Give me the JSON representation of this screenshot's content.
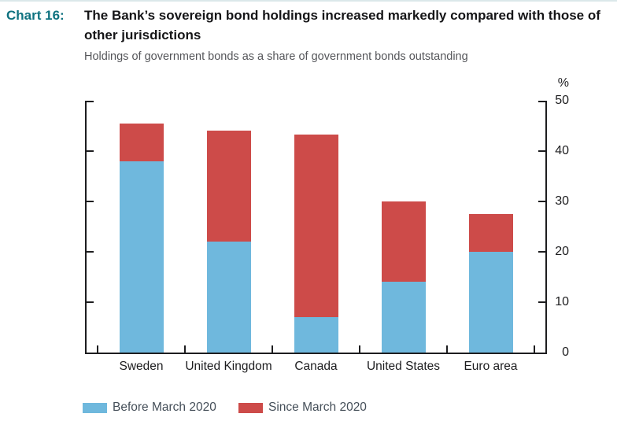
{
  "header": {
    "label": "Chart 16:",
    "title": "The Bank’s sovereign bond holdings increased markedly compared with those of other jurisdictions",
    "subtitle": "Holdings of government bonds as a share of government bonds outstanding"
  },
  "chart_data": {
    "type": "bar",
    "stacked": true,
    "title": "The Bank’s sovereign bond holdings increased markedly compared with those of other jurisdictions",
    "subtitle": "Holdings of government bonds as a share of government bonds outstanding",
    "unit_label": "%",
    "categories": [
      "Sweden",
      "United Kingdom",
      "Canada",
      "United States",
      "Euro area"
    ],
    "series": [
      {
        "name": "Before March 2020",
        "color": "#6fb8dd",
        "values": [
          38,
          22,
          7,
          14,
          20
        ]
      },
      {
        "name": "Since March 2020",
        "color": "#cd4b49",
        "values": [
          7.5,
          22,
          36.3,
          16,
          7.5
        ]
      }
    ],
    "stacked_totals": [
      45.5,
      44,
      43.3,
      30,
      27.5
    ],
    "ylim": [
      0,
      50
    ],
    "yticks": [
      0,
      10,
      20,
      30,
      40,
      50
    ],
    "grid": false,
    "legend_position": "bottom",
    "axis_color": "#1d1d1f",
    "accent_color": "#0f7280"
  }
}
